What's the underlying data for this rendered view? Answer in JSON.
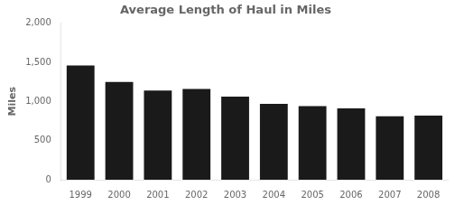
{
  "chart_data": {
    "type": "bar",
    "title": "Average Length of Haul in Miles",
    "ylabel": "Miles",
    "categories": [
      "1999",
      "2000",
      "2001",
      "2002",
      "2003",
      "2004",
      "2005",
      "2006",
      "2007",
      "2008"
    ],
    "values": [
      1460,
      1250,
      1140,
      1160,
      1060,
      970,
      940,
      910,
      810,
      820
    ],
    "color": "#1a1a1a",
    "ylim": [
      0,
      2000
    ],
    "yticks": [
      0,
      500,
      {
        "value": 1000,
        "label": "1,000"
      },
      {
        "value": 1500,
        "label": "1,500"
      },
      {
        "value": 2000,
        "label": "2,000"
      }
    ],
    "grid": false
  }
}
